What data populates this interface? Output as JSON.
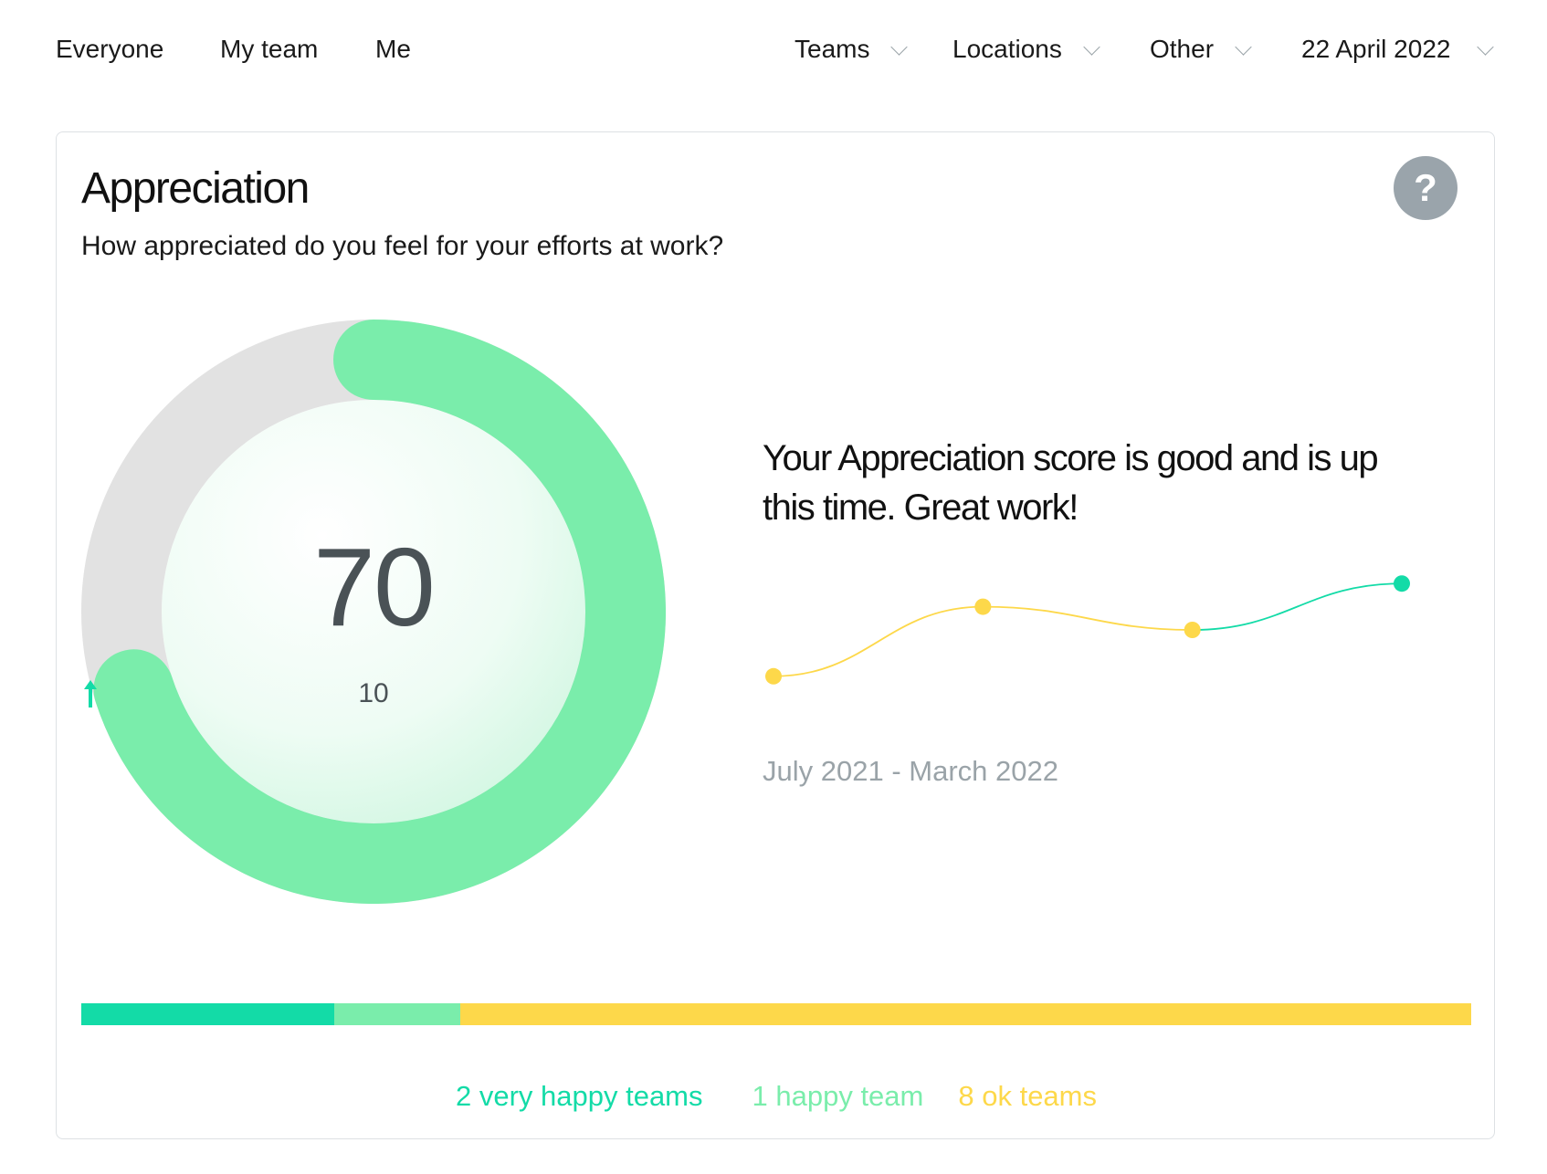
{
  "nav": {
    "tabs": [
      {
        "label": "Everyone"
      },
      {
        "label": "My team"
      },
      {
        "label": "Me"
      }
    ],
    "filters": [
      {
        "label": "Teams"
      },
      {
        "label": "Locations"
      },
      {
        "label": "Other"
      },
      {
        "label": "22 April 2022"
      }
    ]
  },
  "card": {
    "title": "Appreciation",
    "question": "How appreciated do you feel for your efforts at work?",
    "help_label": "?"
  },
  "gauge": {
    "score": "70",
    "score_value": 70,
    "score_max": 100,
    "change": "10",
    "change_direction": "up",
    "track_color": "#e2e2e2",
    "fill_color": "#7aedab"
  },
  "summary": {
    "text": "Your Appreciation score is good and is up this time. Great work!"
  },
  "trend": {
    "range_label": "July 2021 - March 2022",
    "points": [
      {
        "value": 58,
        "status": "ok"
      },
      {
        "value": 67,
        "status": "ok"
      },
      {
        "value": 64,
        "status": "ok"
      },
      {
        "value": 70,
        "status": "happy"
      }
    ],
    "colors": {
      "ok": "#fdd84a",
      "happy": "#13dba7"
    }
  },
  "distribution": {
    "segments": [
      {
        "count": 2,
        "label": "2 very happy teams",
        "color": "#13dba7"
      },
      {
        "count": 1,
        "label": "1 happy team",
        "color": "#7aedab"
      },
      {
        "count": 8,
        "label": "8 ok teams",
        "color": "#fdd84a"
      }
    ]
  },
  "colors": {
    "text": "#111111",
    "muted": "#9aa3a8",
    "score_text": "#4a5256",
    "help_button": "#9aa4ab",
    "arrow": "#13dba7"
  }
}
